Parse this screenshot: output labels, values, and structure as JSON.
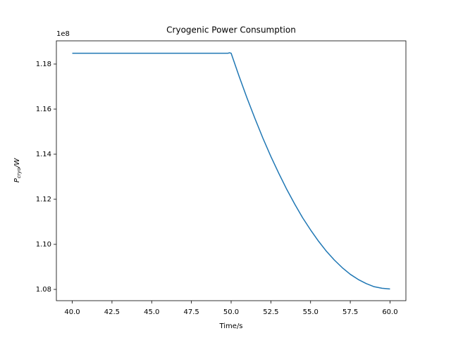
{
  "chart_data": {
    "type": "line",
    "title": "Cryogenic Power Consumption",
    "xlabel": "Time/s",
    "ylabel_parts": [
      "P",
      "cryo",
      "/W"
    ],
    "y_offset_label": "1e8",
    "color": "#1f77b4",
    "x": [
      40,
      45,
      49.8,
      49.9,
      50,
      50.5,
      51,
      51.5,
      52,
      52.5,
      53,
      53.5,
      54,
      54.5,
      55,
      55.5,
      56,
      56.5,
      57,
      57.5,
      58,
      58.5,
      59,
      59.5,
      60
    ],
    "values": [
      1.1848,
      1.1848,
      1.1848,
      1.185,
      1.1848,
      1.1746,
      1.1649,
      1.1558,
      1.1471,
      1.139,
      1.1315,
      1.1244,
      1.1179,
      1.1118,
      1.1064,
      1.1014,
      1.0969,
      1.093,
      1.0896,
      1.0867,
      1.0844,
      1.0826,
      1.0812,
      1.0805,
      1.0802
    ],
    "xlim": [
      39,
      61
    ],
    "ylim": [
      1.075,
      1.1903
    ],
    "xticks": [
      {
        "value": 40,
        "label": "40.0"
      },
      42.5,
      {
        "value": 45,
        "label": "45.0"
      },
      47.5,
      {
        "value": 50,
        "label": "50.0"
      },
      52.5,
      {
        "value": 55,
        "label": "55.0"
      },
      57.5,
      {
        "value": 60,
        "label": "60.0"
      }
    ],
    "yticks": [
      1.08,
      {
        "value": 1.1,
        "label": "1.10"
      },
      1.12,
      1.14,
      1.16,
      1.18
    ]
  }
}
